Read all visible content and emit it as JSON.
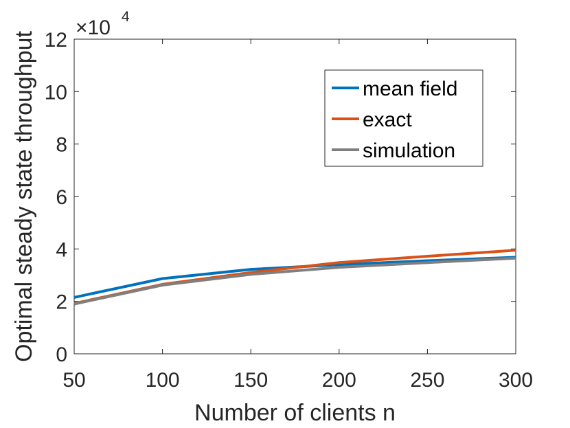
{
  "chart_data": {
    "type": "line",
    "title": "",
    "xlabel": "Number of clients n",
    "ylabel": "Optimal steady state throughput",
    "y_multiplier_base": "×10",
    "y_multiplier_exp": "4",
    "xlim": [
      50,
      300
    ],
    "ylim": [
      0,
      12
    ],
    "x_ticks": [
      50,
      100,
      150,
      200,
      250,
      300
    ],
    "y_ticks": [
      0,
      2,
      4,
      6,
      8,
      10,
      12
    ],
    "x_tick_labels": [
      "50",
      "100",
      "150",
      "200",
      "250",
      "300"
    ],
    "y_tick_labels": [
      "0",
      "2",
      "4",
      "6",
      "8",
      "10",
      "12"
    ],
    "grid": false,
    "legend_position": "top-right",
    "x": [
      50,
      100,
      150,
      200,
      250,
      300
    ],
    "series": [
      {
        "name": "mean field",
        "color": "#0072bd",
        "values": [
          2.15,
          2.87,
          3.22,
          3.4,
          3.55,
          3.68
        ]
      },
      {
        "name": "exact",
        "color": "#d95319",
        "values": [
          1.92,
          2.65,
          3.1,
          3.48,
          3.72,
          3.95
        ]
      },
      {
        "name": "simulation",
        "color": "#7f7f7f",
        "values": [
          1.9,
          2.62,
          3.03,
          3.3,
          3.48,
          3.65
        ]
      }
    ]
  }
}
